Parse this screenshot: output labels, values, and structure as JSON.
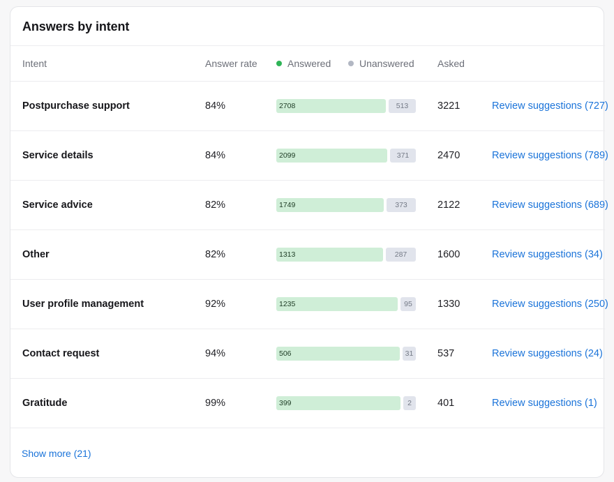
{
  "card": {
    "title": "Answers by intent",
    "show_more": "Show more (21)"
  },
  "columns": {
    "intent": "Intent",
    "answer_rate": "Answer rate",
    "answered": "Answered",
    "unanswered": "Unanswered",
    "asked": "Asked"
  },
  "colors": {
    "answered_dot": "#2fb457",
    "unanswered_dot": "#b2b7c3",
    "answered_bar": "#cfeed7",
    "unanswered_bar": "#e1e4ec",
    "link": "#1a73d9"
  },
  "rows": [
    {
      "intent": "Postpurchase support",
      "rate": "84%",
      "answered": 2708,
      "unanswered": 513,
      "asked": "3221",
      "review": "Review suggestions (727)"
    },
    {
      "intent": "Service details",
      "rate": "84%",
      "answered": 2099,
      "unanswered": 371,
      "asked": "2470",
      "review": "Review suggestions (789)"
    },
    {
      "intent": "Service advice",
      "rate": "82%",
      "answered": 1749,
      "unanswered": 373,
      "asked": "2122",
      "review": "Review suggestions (689)"
    },
    {
      "intent": "Other",
      "rate": "82%",
      "answered": 1313,
      "unanswered": 287,
      "asked": "1600",
      "review": "Review suggestions (34)"
    },
    {
      "intent": "User profile management",
      "rate": "92%",
      "answered": 1235,
      "unanswered": 95,
      "asked": "1330",
      "review": "Review suggestions (250)"
    },
    {
      "intent": "Contact request",
      "rate": "94%",
      "answered": 506,
      "unanswered": 31,
      "asked": "537",
      "review": "Review suggestions (24)"
    },
    {
      "intent": "Gratitude",
      "rate": "99%",
      "answered": 399,
      "unanswered": 2,
      "asked": "401",
      "review": "Review suggestions (1)"
    }
  ]
}
